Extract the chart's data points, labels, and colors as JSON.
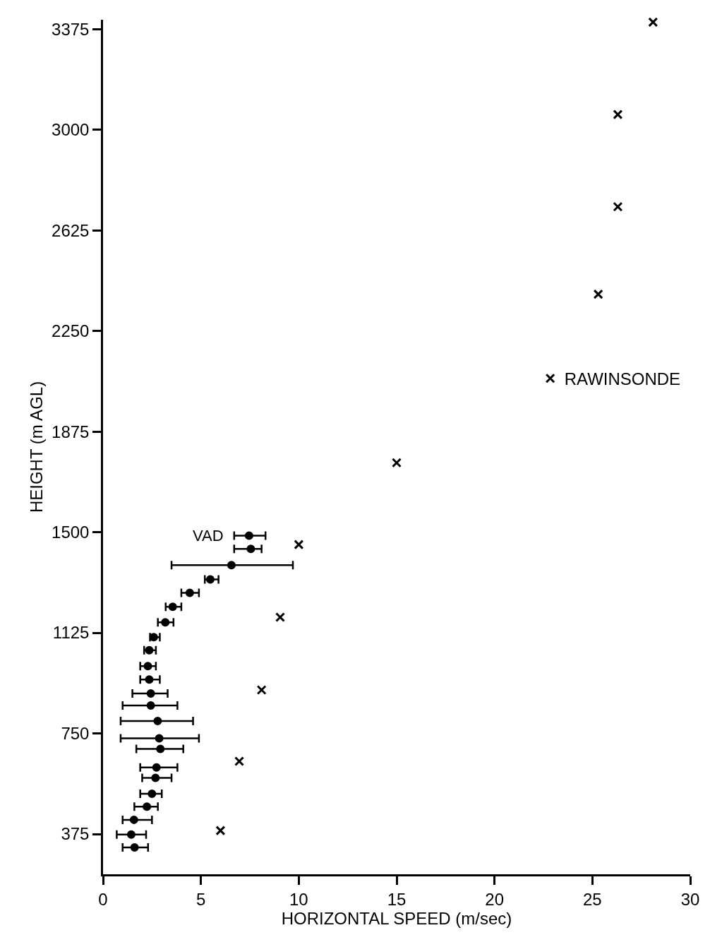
{
  "chart_data": {
    "type": "scatter",
    "xlabel": "HORIZONTAL SPEED (m/sec)",
    "ylabel": "HEIGHT (m AGL)",
    "xlim": [
      0,
      30
    ],
    "xticks": [
      0,
      5,
      10,
      15,
      20,
      25,
      30
    ],
    "ylim": [
      225,
      3410
    ],
    "yticks": [
      375,
      750,
      1125,
      1500,
      1875,
      2250,
      2625,
      3000,
      3375
    ],
    "legend": "right",
    "series": [
      {
        "name": "VAD",
        "color": "#000000",
        "marker": "circle",
        "x": [
          7.46,
          7.55,
          6.56,
          5.48,
          4.43,
          3.56,
          3.18,
          2.59,
          2.36,
          2.29,
          2.36,
          2.44,
          2.44,
          2.79,
          2.87,
          2.93,
          2.73,
          2.68,
          2.5,
          2.24,
          1.58,
          1.44,
          1.61
        ],
        "values": [
          1487,
          1438,
          1377,
          1324,
          1274,
          1222,
          1164,
          1109,
          1060,
          1001,
          951,
          899,
          854,
          796,
          732,
          692,
          623,
          584,
          525,
          477,
          428,
          373,
          325
        ],
        "xerrors": [
          [
            6.7,
            8.3
          ],
          [
            6.7,
            8.1
          ],
          [
            3.5,
            9.7
          ],
          [
            5.2,
            5.9
          ],
          [
            4.0,
            4.9
          ],
          [
            3.2,
            4.0
          ],
          [
            2.8,
            3.6
          ],
          [
            2.4,
            2.9
          ],
          [
            2.1,
            2.7
          ],
          [
            1.9,
            2.7
          ],
          [
            1.9,
            2.9
          ],
          [
            1.5,
            3.3
          ],
          [
            1.0,
            3.8
          ],
          [
            0.9,
            4.6
          ],
          [
            0.9,
            4.9
          ],
          [
            1.7,
            4.1
          ],
          [
            1.9,
            3.8
          ],
          [
            2.0,
            3.5
          ],
          [
            1.9,
            3.0
          ],
          [
            1.6,
            2.8
          ],
          [
            1.0,
            2.5
          ],
          [
            0.7,
            2.2
          ],
          [
            1.0,
            2.3
          ]
        ]
      },
      {
        "name": "RAWINSONDE",
        "color": "#000000",
        "marker": "cross",
        "x": [
          28.1,
          26.3,
          26.3,
          25.3,
          15.0,
          10.0,
          9.05,
          8.1,
          6.96,
          6.0
        ],
        "values": [
          3401,
          3057,
          2713,
          2387,
          1759,
          1454,
          1183,
          912,
          646,
          388
        ]
      }
    ]
  }
}
